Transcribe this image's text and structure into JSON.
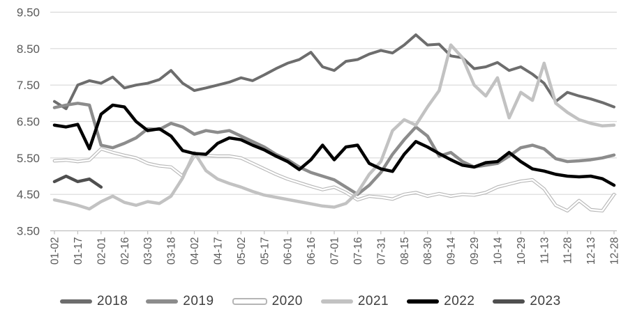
{
  "chart_data": {
    "type": "line",
    "title": "",
    "xlabel": "",
    "ylabel": "",
    "ylim": [
      3.5,
      9.5
    ],
    "grid": true,
    "legend_position": "bottom",
    "y_tick_labels": [
      "9.50",
      "8.50",
      "7.50",
      "6.50",
      "5.50",
      "4.50",
      "3.50"
    ],
    "y_tick_values": [
      9.5,
      8.5,
      7.5,
      6.5,
      5.5,
      4.5,
      3.5
    ],
    "x_tick_labels": [
      "01-02",
      "01-17",
      "02-01",
      "02-16",
      "03-03",
      "03-18",
      "04-02",
      "04-17",
      "05-02",
      "05-17",
      "06-01",
      "06-16",
      "07-01",
      "07-16",
      "07-31",
      "08-15",
      "08-30",
      "09-14",
      "09-29",
      "10-14",
      "10-29",
      "11-13",
      "11-28",
      "12-13",
      "12-28"
    ],
    "points_per_interval": 2,
    "series": [
      {
        "name": "2018",
        "color": "#6d6d6d",
        "width": 4,
        "values": [
          7.05,
          6.85,
          7.5,
          7.62,
          7.55,
          7.72,
          7.42,
          7.5,
          7.55,
          7.65,
          7.9,
          7.55,
          7.35,
          7.42,
          7.5,
          7.58,
          7.7,
          7.62,
          7.78,
          7.95,
          8.1,
          8.2,
          8.4,
          8.0,
          7.9,
          8.15,
          8.2,
          8.35,
          8.45,
          8.38,
          8.6,
          8.88,
          8.6,
          8.62,
          8.3,
          8.25,
          7.95,
          8.0,
          8.12,
          7.9,
          8.0,
          7.8,
          7.55,
          7.05,
          7.3,
          7.2,
          7.12,
          7.02,
          6.9
        ]
      },
      {
        "name": "2019",
        "color": "#8c8c8c",
        "width": 4.5,
        "values": [
          6.88,
          6.95,
          7.0,
          6.95,
          5.85,
          5.78,
          5.9,
          6.05,
          6.3,
          6.28,
          6.45,
          6.35,
          6.15,
          6.25,
          6.2,
          6.25,
          6.1,
          5.95,
          5.8,
          5.6,
          5.45,
          5.25,
          5.1,
          5.0,
          4.9,
          4.7,
          4.5,
          4.75,
          5.1,
          5.6,
          6.0,
          6.35,
          6.1,
          5.55,
          5.65,
          5.4,
          5.25,
          5.3,
          5.35,
          5.55,
          5.78,
          5.85,
          5.75,
          5.48,
          5.4,
          5.42,
          5.45,
          5.5,
          5.58
        ]
      },
      {
        "name": "2020",
        "color": "#ffffff",
        "casing": "#b5b5b5",
        "width": 2.5,
        "values": [
          5.42,
          5.44,
          5.4,
          5.44,
          5.75,
          5.65,
          5.57,
          5.5,
          5.35,
          5.28,
          5.25,
          5.0,
          5.57,
          5.57,
          5.55,
          5.55,
          5.5,
          5.35,
          5.2,
          5.05,
          4.92,
          4.82,
          4.72,
          4.63,
          4.7,
          4.55,
          4.35,
          4.45,
          4.42,
          4.37,
          4.5,
          4.55,
          4.45,
          4.52,
          4.45,
          4.5,
          4.48,
          4.55,
          4.7,
          4.78,
          4.86,
          4.9,
          4.65,
          4.2,
          4.05,
          4.33,
          4.08,
          4.05,
          4.5
        ]
      },
      {
        "name": "2021",
        "color": "#c2c2c2",
        "width": 4.5,
        "values": [
          4.35,
          4.28,
          4.2,
          4.1,
          4.3,
          4.45,
          4.28,
          4.2,
          4.3,
          4.25,
          4.45,
          4.95,
          5.65,
          5.15,
          4.92,
          4.8,
          4.7,
          4.58,
          4.48,
          4.42,
          4.36,
          4.3,
          4.24,
          4.18,
          4.15,
          4.25,
          4.55,
          5.05,
          5.4,
          6.25,
          6.55,
          6.4,
          6.9,
          7.35,
          8.6,
          8.25,
          7.5,
          7.2,
          7.7,
          6.6,
          7.3,
          7.08,
          8.1,
          7.0,
          6.75,
          6.55,
          6.45,
          6.38,
          6.4
        ]
      },
      {
        "name": "2022",
        "color": "#000000",
        "width": 4.5,
        "values": [
          6.4,
          6.35,
          6.42,
          5.75,
          6.7,
          6.95,
          6.9,
          6.5,
          6.25,
          6.3,
          6.1,
          5.7,
          5.62,
          5.6,
          5.9,
          6.05,
          6.0,
          5.85,
          5.72,
          5.55,
          5.4,
          5.18,
          5.45,
          5.85,
          5.45,
          5.8,
          5.85,
          5.35,
          5.2,
          5.13,
          5.6,
          5.95,
          5.8,
          5.62,
          5.45,
          5.3,
          5.25,
          5.37,
          5.4,
          5.65,
          5.4,
          5.2,
          5.14,
          5.05,
          5.0,
          4.98,
          5.0,
          4.93,
          4.75
        ]
      },
      {
        "name": "2023",
        "color": "#4f4f4f",
        "width": 4.5,
        "values": [
          4.85,
          5.0,
          4.85,
          4.92,
          4.7
        ]
      }
    ],
    "style": {
      "gridline_color": "#d9d9d9",
      "axis_color": "#c0c0c0",
      "tick_label_color": "#595959",
      "legend_text_color": "#3f3f3f"
    }
  }
}
